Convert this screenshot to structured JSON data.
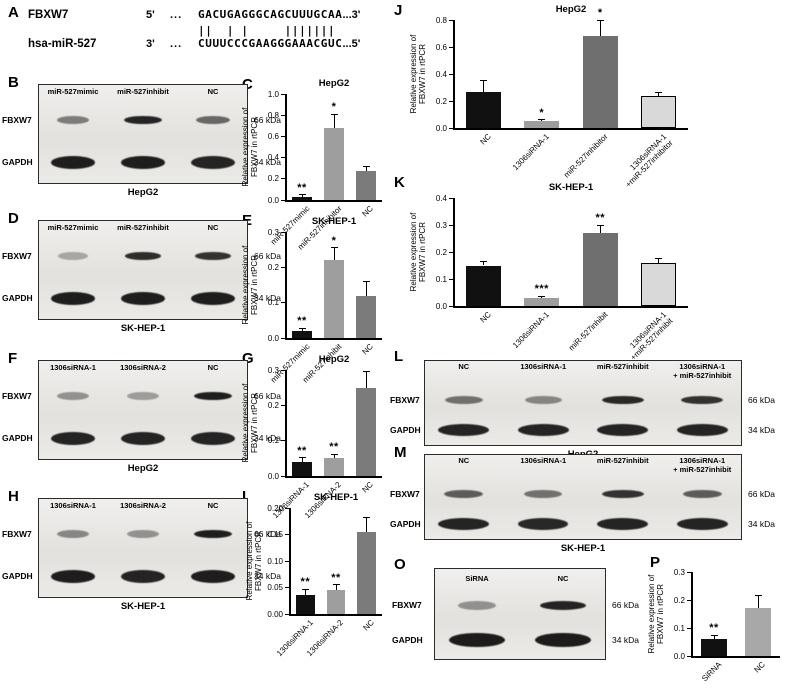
{
  "panels": {
    "A": "A",
    "B": "B",
    "C": "C",
    "D": "D",
    "E": "E",
    "F": "F",
    "G": "G",
    "H": "H",
    "I": "I",
    "J": "J",
    "K": "K",
    "L": "L",
    "M": "M",
    "O": "O",
    "P": "P"
  },
  "alignment": {
    "gene_name": "FBXW7",
    "mir_name": "hsa-miR-527",
    "gene_p": "5'",
    "gene_dots": "...",
    "gene_seq": "GACUGAGGGCAGCUUUGCAA",
    "gene_end": "...3'",
    "mir_p": "3'",
    "mir_dots": "...",
    "mir_seq": "CUUUCCCGAAGGGAAACGUC",
    "mir_end": "...5'",
    "match": "||  | |     ||||||| "
  },
  "ylabel": "Relative expression of\nFBXW7 in rtPCR",
  "chart_data": {
    "C": {
      "type": "bar",
      "title": "HepG2",
      "ymax": 1.0,
      "ydec": 1,
      "yticks": [
        0,
        0.2,
        0.4,
        0.6,
        0.8,
        1.0
      ],
      "categories": [
        "miR-527mimic",
        "miR-527inhibitor",
        "NC"
      ],
      "values": [
        0.03,
        0.68,
        0.27
      ],
      "errors": [
        0.02,
        0.13,
        0.05
      ],
      "sig": [
        "**",
        "*",
        ""
      ],
      "colors": [
        "#111111",
        "#9e9e9e",
        "#7b7b7b"
      ]
    },
    "E": {
      "type": "bar",
      "title": "SK-HEP-1",
      "ymax": 0.3,
      "ydec": 1,
      "yticks": [
        0,
        0.1,
        0.2,
        0.3
      ],
      "categories": [
        "miR-527mimic",
        "miR-527inhibit",
        "NC"
      ],
      "values": [
        0.02,
        0.22,
        0.12
      ],
      "errors": [
        0.008,
        0.035,
        0.04
      ],
      "sig": [
        "**",
        "*",
        ""
      ],
      "colors": [
        "#111111",
        "#9e9e9e",
        "#7b7b7b"
      ]
    },
    "G": {
      "type": "bar",
      "title": "HepG2",
      "ymax": 0.3,
      "ydec": 1,
      "yticks": [
        0,
        0.1,
        0.2,
        0.3
      ],
      "categories": [
        "1306siRNA-1",
        "1306siRNA-2",
        "NC"
      ],
      "values": [
        0.04,
        0.05,
        0.25
      ],
      "errors": [
        0.012,
        0.012,
        0.045
      ],
      "sig": [
        "**",
        "**",
        ""
      ],
      "colors": [
        "#111111",
        "#9e9e9e",
        "#7b7b7b"
      ]
    },
    "I": {
      "type": "bar",
      "title": "SK-HEP-1",
      "ymax": 0.2,
      "ydec": 2,
      "yticks": [
        0,
        0.05,
        0.1,
        0.15,
        0.2
      ],
      "categories": [
        "1306siRNA-1",
        "1306siRNA-2",
        "NC"
      ],
      "values": [
        0.035,
        0.045,
        0.155
      ],
      "errors": [
        0.012,
        0.01,
        0.028
      ],
      "sig": [
        "**",
        "**",
        ""
      ],
      "colors": [
        "#111111",
        "#9e9e9e",
        "#7b7b7b"
      ]
    },
    "J": {
      "type": "bar",
      "title": "HepG2",
      "ymax": 0.8,
      "ydec": 1,
      "yticks": [
        0,
        0.2,
        0.4,
        0.6,
        0.8
      ],
      "categories": [
        "NC",
        "1306siRNA-1",
        "miR-527inhibitor",
        "1306siRNA-1\n+miR-527inhibitor"
      ],
      "values": [
        0.27,
        0.05,
        0.68,
        0.24
      ],
      "errors": [
        0.08,
        0.012,
        0.12,
        0.025
      ],
      "sig": [
        "",
        "*",
        "*",
        ""
      ],
      "colors": [
        "#111111",
        "#9e9e9e",
        "#6f6f6f",
        "#d9d9d9"
      ]
    },
    "K": {
      "type": "bar",
      "title": "SK-HEP-1",
      "ymax": 0.4,
      "ydec": 1,
      "yticks": [
        0,
        0.1,
        0.2,
        0.3,
        0.4
      ],
      "categories": [
        "NC",
        "1306siRNA-1",
        "miR-527inhibit",
        "1306siRNA-1\n+miR-527inhibit"
      ],
      "values": [
        0.15,
        0.03,
        0.27,
        0.16
      ],
      "errors": [
        0.015,
        0.006,
        0.03,
        0.015
      ],
      "sig": [
        "",
        "***",
        "**",
        ""
      ],
      "colors": [
        "#111111",
        "#9e9e9e",
        "#6f6f6f",
        "#d9d9d9"
      ]
    },
    "P": {
      "type": "bar",
      "title": "",
      "ymax": 0.3,
      "ydec": 1,
      "yticks": [
        0,
        0.1,
        0.2,
        0.3
      ],
      "categories": [
        "SiRNA",
        "NC"
      ],
      "values": [
        0.06,
        0.17
      ],
      "errors": [
        0.015,
        0.045
      ],
      "sig": [
        "**",
        ""
      ],
      "colors": [
        "#111111",
        "#a8a8a8"
      ]
    }
  },
  "blots": {
    "B": {
      "cols": [
        "miR-527mimic",
        "miR-527inhibit",
        "NC"
      ],
      "rows": [
        {
          "label": "FBXW7",
          "kda": "66 kDa",
          "h": 8,
          "bands": [
            0.5,
            0.92,
            0.6
          ]
        },
        {
          "label": "GAPDH",
          "kda": "34 kDa",
          "h": 13,
          "bands": [
            0.95,
            0.95,
            0.92
          ]
        }
      ],
      "cell": "HepG2"
    },
    "D": {
      "cols": [
        "miR-527mimic",
        "miR-527inhibit",
        "NC"
      ],
      "rows": [
        {
          "label": "FBXW7",
          "kda": "66 kDa",
          "h": 8,
          "bands": [
            0.3,
            0.88,
            0.85
          ]
        },
        {
          "label": "GAPDH",
          "kda": "34 kDa",
          "h": 13,
          "bands": [
            0.95,
            0.95,
            0.95
          ]
        }
      ],
      "cell": "SK-HEP-1"
    },
    "F": {
      "cols": [
        "1306siRNA-1",
        "1306siRNA-2",
        "NC"
      ],
      "rows": [
        {
          "label": "FBXW7",
          "kda": "66 kDa",
          "h": 8,
          "bands": [
            0.4,
            0.35,
            0.95
          ]
        },
        {
          "label": "GAPDH",
          "kda": "34 kDa",
          "h": 13,
          "bands": [
            0.92,
            0.92,
            0.92
          ]
        }
      ],
      "cell": "HepG2"
    },
    "H": {
      "cols": [
        "1306siRNA-1",
        "1306siRNA-2",
        "NC"
      ],
      "rows": [
        {
          "label": "FBXW7",
          "kda": "66 kDa",
          "h": 8,
          "bands": [
            0.45,
            0.4,
            0.95
          ]
        },
        {
          "label": "GAPDH",
          "kda": "34 kDa",
          "h": 13,
          "bands": [
            0.95,
            0.92,
            0.95
          ]
        }
      ],
      "cell": "SK-HEP-1"
    },
    "L": {
      "cols": [
        "NC",
        "1306siRNA-1",
        "miR-527inhibit",
        "1306siRNA-1\n+ miR-527inhibit"
      ],
      "rows": [
        {
          "label": "FBXW7",
          "kda": "66 kDa",
          "h": 8,
          "bands": [
            0.55,
            0.45,
            0.9,
            0.85
          ]
        },
        {
          "label": "GAPDH",
          "kda": "34 kDa",
          "h": 12,
          "bands": [
            0.92,
            0.92,
            0.92,
            0.92
          ]
        }
      ],
      "cell": "HepG2"
    },
    "M": {
      "cols": [
        "NC",
        "1306siRNA-1",
        "miR-527inhibit",
        "1306siRNA-1\n+ miR-527inhibit"
      ],
      "rows": [
        {
          "label": "FBXW7",
          "kda": "66 kDa",
          "h": 8,
          "bands": [
            0.65,
            0.55,
            0.85,
            0.65
          ]
        },
        {
          "label": "GAPDH",
          "kda": "34 kDa",
          "h": 12,
          "bands": [
            0.92,
            0.9,
            0.92,
            0.92
          ]
        }
      ],
      "cell": "SK-HEP-1"
    },
    "O": {
      "cols": [
        "SiRNA",
        "NC"
      ],
      "rows": [
        {
          "label": "FBXW7",
          "kda": "66 kDa",
          "h": 9,
          "bands": [
            0.4,
            0.92
          ]
        },
        {
          "label": "GAPDH",
          "kda": "34 kDa",
          "h": 14,
          "bands": [
            0.96,
            0.96
          ]
        }
      ],
      "cell": ""
    }
  }
}
